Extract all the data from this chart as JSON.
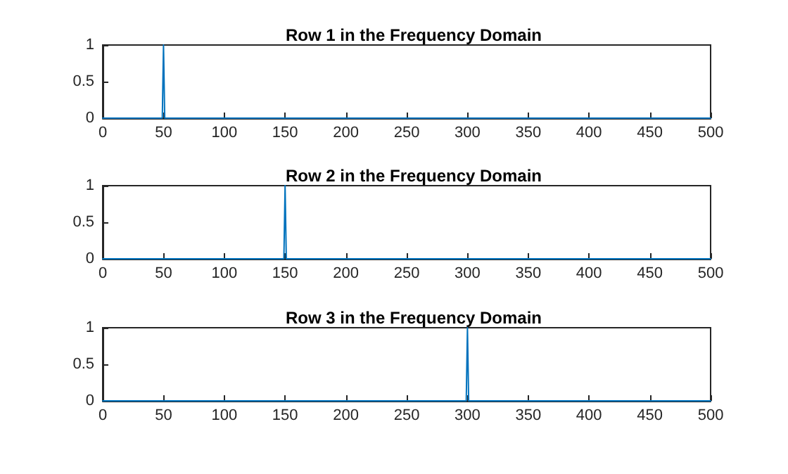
{
  "chart_data": [
    {
      "type": "line",
      "title": "Row 1 in the Frequency Domain",
      "x": [
        0,
        49,
        50,
        51,
        500
      ],
      "series": [
        {
          "color": "#0072bd",
          "values": [
            0,
            0,
            1,
            0,
            0
          ]
        }
      ],
      "xlim": [
        0,
        500
      ],
      "xticks": [
        0,
        50,
        100,
        150,
        200,
        250,
        300,
        350,
        400,
        450,
        500
      ],
      "ylim": [
        0,
        1
      ],
      "yticks": [
        0,
        0.5,
        1
      ],
      "grid": false,
      "marker": "none",
      "line_style": "solid"
    },
    {
      "type": "line",
      "title": "Row 2 in the Frequency Domain",
      "x": [
        0,
        149,
        150,
        151,
        500
      ],
      "series": [
        {
          "color": "#0072bd",
          "values": [
            0,
            0,
            1,
            0,
            0
          ]
        }
      ],
      "xlim": [
        0,
        500
      ],
      "xticks": [
        0,
        50,
        100,
        150,
        200,
        250,
        300,
        350,
        400,
        450,
        500
      ],
      "ylim": [
        0,
        1
      ],
      "yticks": [
        0,
        0.5,
        1
      ],
      "grid": false,
      "marker": "none",
      "line_style": "solid"
    },
    {
      "type": "line",
      "title": "Row 3 in the Frequency Domain",
      "x": [
        0,
        299,
        300,
        301,
        500
      ],
      "series": [
        {
          "color": "#0072bd",
          "values": [
            0,
            0,
            1,
            0,
            0
          ]
        }
      ],
      "xlim": [
        0,
        500
      ],
      "xticks": [
        0,
        50,
        100,
        150,
        200,
        250,
        300,
        350,
        400,
        450,
        500
      ],
      "ylim": [
        0,
        1
      ],
      "yticks": [
        0,
        0.5,
        1
      ],
      "grid": false,
      "marker": "none",
      "line_style": "solid"
    }
  ]
}
